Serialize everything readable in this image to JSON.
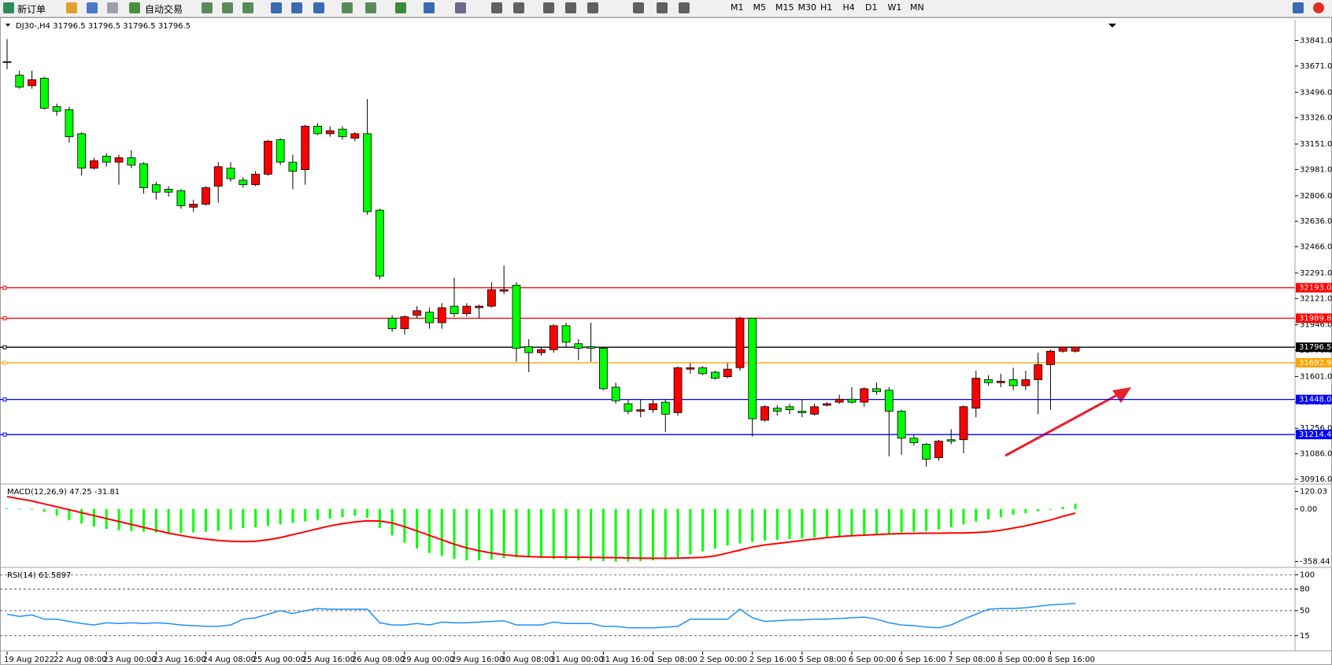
{
  "toolbar": {
    "buttons": [
      "新订单",
      "自动交易"
    ],
    "periods": [
      "M1",
      "M5",
      "M15",
      "M30",
      "H1",
      "H4",
      "D1",
      "W1",
      "MN"
    ]
  },
  "chart_data": [
    {
      "type": "candlestick",
      "title": "DJ30-,H4  31796.5 31796.5 31796.5 31796.5",
      "up_color": "#ff0000",
      "down_color": "#00ff00",
      "categories": [
        "19 Aug 2022",
        null,
        null,
        null,
        "22 Aug 08:00",
        null,
        null,
        null,
        "23 Aug 00:00",
        null,
        null,
        null,
        "23 Aug 16:00",
        null,
        null,
        null,
        "24 Aug 08:00",
        null,
        null,
        null,
        "25 Aug 00:00",
        null,
        null,
        null,
        "25 Aug 16:00",
        null,
        null,
        null,
        "26 Aug 08:00",
        null,
        null,
        null,
        "29 Aug 00:00",
        null,
        null,
        null,
        "29 Aug 16:00",
        null,
        null,
        null,
        "30 Aug 08:00",
        null,
        null,
        null,
        "31 Aug 00:00",
        null,
        null,
        null,
        "31 Aug 16:00",
        null,
        null,
        null,
        "1 Sep 08:00",
        null,
        null,
        null,
        "2 Sep 00:00",
        null,
        null,
        null,
        "2 Sep 16:00",
        null,
        null,
        null,
        "5 Sep 08:00",
        null,
        null,
        null,
        "6 Sep 00:00",
        null,
        null,
        null,
        "6 Sep 16:00",
        null,
        null,
        null,
        "7 Sep 08:00",
        null,
        null,
        null,
        "8 Sep 00:00",
        null,
        null,
        null,
        "8 Sep 16:00",
        null,
        null
      ],
      "open": [
        33700,
        33610,
        33540,
        33590,
        33400,
        33380,
        33220,
        32990,
        33070,
        33030,
        33060,
        33020,
        32880,
        32850,
        32840,
        32730,
        32750,
        32870,
        32990,
        32910,
        32880,
        32950,
        33180,
        33030,
        32980,
        33270,
        33220,
        33250,
        33190,
        33220,
        32710,
        31990,
        31920,
        32010,
        32030,
        31960,
        32070,
        32020,
        32060,
        32070,
        32170,
        32210,
        31800,
        31760,
        31780,
        31940,
        31820,
        31800,
        31790,
        31530,
        31420,
        31370,
        31380,
        31430,
        31360,
        31650,
        31660,
        31630,
        31600,
        31660,
        31990,
        31310,
        31390,
        31400,
        31370,
        31350,
        31410,
        31430,
        31450,
        31430,
        31520,
        31510,
        31370,
        31190,
        31150,
        31060,
        31180,
        31180,
        31390,
        31580,
        31560,
        31580,
        31540,
        31580,
        31680,
        31770,
        31770
      ],
      "high": [
        33850,
        33640,
        33640,
        33600,
        33420,
        33400,
        33230,
        33060,
        33090,
        33080,
        33110,
        33030,
        32900,
        32870,
        32850,
        32780,
        32870,
        33030,
        33030,
        32930,
        32970,
        33180,
        33190,
        33080,
        33280,
        33290,
        33270,
        33270,
        33230,
        33450,
        32720,
        32010,
        32010,
        32070,
        32060,
        32090,
        32260,
        32090,
        32080,
        32230,
        32340,
        32230,
        31850,
        31800,
        31950,
        31960,
        31850,
        31960,
        31800,
        31560,
        31450,
        31450,
        31450,
        31450,
        31670,
        31690,
        31670,
        31640,
        31690,
        32000,
        31990,
        31410,
        31410,
        31420,
        31450,
        31420,
        31430,
        31480,
        31530,
        31530,
        31560,
        31530,
        31380,
        31210,
        31160,
        31180,
        31250,
        31410,
        31640,
        31610,
        31620,
        31660,
        31640,
        31760,
        31780,
        31800,
        31800
      ],
      "low": [
        33650,
        33520,
        33520,
        33380,
        33340,
        33160,
        32940,
        32980,
        33000,
        32880,
        32990,
        32820,
        32780,
        32800,
        32720,
        32700,
        32740,
        32760,
        32900,
        32860,
        32870,
        32940,
        33010,
        32850,
        32880,
        33210,
        33200,
        33180,
        33170,
        32680,
        32250,
        31900,
        31880,
        31990,
        31920,
        31920,
        32000,
        32000,
        31990,
        32060,
        32150,
        31700,
        31630,
        31740,
        31760,
        31800,
        31710,
        31700,
        31510,
        31420,
        31350,
        31330,
        31360,
        31230,
        31340,
        31620,
        31610,
        31580,
        31590,
        31640,
        31200,
        31300,
        31340,
        31350,
        31330,
        31340,
        31400,
        31420,
        31420,
        31400,
        31480,
        31070,
        31080,
        31140,
        31000,
        31040,
        31150,
        31090,
        31330,
        31540,
        31530,
        31510,
        31510,
        31350,
        31380,
        31760,
        31760
      ],
      "close": [
        33700,
        33530,
        33580,
        33390,
        33370,
        33200,
        32990,
        33040,
        33030,
        33060,
        33010,
        32860,
        32830,
        32830,
        32740,
        32750,
        32860,
        33000,
        32920,
        32880,
        32950,
        33170,
        33030,
        32970,
        33270,
        33220,
        33240,
        33200,
        33220,
        32700,
        32270,
        31920,
        32000,
        32040,
        31960,
        32060,
        32020,
        32070,
        32070,
        32180,
        32180,
        31790,
        31760,
        31780,
        31940,
        31830,
        31790,
        31790,
        31520,
        31440,
        31370,
        31380,
        31420,
        31350,
        31660,
        31660,
        31620,
        31590,
        31650,
        31990,
        31320,
        31400,
        31370,
        31380,
        31360,
        31400,
        31420,
        31450,
        31430,
        31520,
        31500,
        31370,
        31190,
        31160,
        31050,
        31170,
        31170,
        31400,
        31590,
        31560,
        31570,
        31540,
        31580,
        31680,
        31770,
        31797,
        31797
      ],
      "ylim": [
        30890,
        33980
      ],
      "yticks": [
        {
          "value": 33841,
          "label": "33841.0"
        },
        {
          "value": 33671,
          "label": "33671.0"
        },
        {
          "value": 33496,
          "label": "33496.0"
        },
        {
          "value": 33326,
          "label": "33326.0"
        },
        {
          "value": 33151,
          "label": "33151.0"
        },
        {
          "value": 32981,
          "label": "32981.0"
        },
        {
          "value": 32806,
          "label": "32806.0"
        },
        {
          "value": 32636,
          "label": "32636.0"
        },
        {
          "value": 32466,
          "label": "32466.0"
        },
        {
          "value": 32291,
          "label": "32291.0"
        },
        {
          "value": 32121,
          "label": "32121.0"
        },
        {
          "value": 31946,
          "label": "31946.0"
        },
        {
          "value": 31776,
          "label": "31776.0"
        },
        {
          "value": 31601,
          "label": "31601.0"
        },
        {
          "value": 31431,
          "label": "31431.0"
        },
        {
          "value": 31256,
          "label": "31256.0"
        },
        {
          "value": 31086,
          "label": "31086.0"
        },
        {
          "value": 30916,
          "label": "30916.0"
        }
      ],
      "levels": [
        {
          "value": 32193,
          "label": "32193.0",
          "color": "#ff0000"
        },
        {
          "value": 31989.8,
          "label": "31989.8",
          "color": "#ff0000"
        },
        {
          "value": 31796.5,
          "label": "31796.5",
          "color": "#000000"
        },
        {
          "value": 31692.9,
          "label": "31692.9",
          "color": "#ffa500"
        },
        {
          "value": 31448,
          "label": "31448.0",
          "color": "#0000ff"
        },
        {
          "value": 31214.4,
          "label": "31214.4",
          "color": "#0000ff"
        }
      ]
    },
    {
      "type": "macd",
      "title": "MACD(12,26,9) 47.25 -31.81",
      "color": "#00ff00",
      "signal_color": "#ff0000",
      "values": [
        5,
        3,
        -5,
        -20,
        -45,
        -75,
        -100,
        -120,
        -135,
        -145,
        -150,
        -155,
        -160,
        -165,
        -165,
        -160,
        -155,
        -150,
        -140,
        -130,
        -125,
        -115,
        -105,
        -95,
        -85,
        -75,
        -65,
        -55,
        -45,
        -60,
        -130,
        -180,
        -230,
        -270,
        -300,
        -320,
        -340,
        -350,
        -350,
        -345,
        -335,
        -330,
        -330,
        -335,
        -340,
        -345,
        -350,
        -352,
        -355,
        -358,
        -358,
        -355,
        -350,
        -345,
        -330,
        -310,
        -290,
        -270,
        -250,
        -235,
        -225,
        -215,
        -210,
        -205,
        -200,
        -195,
        -190,
        -185,
        -180,
        -175,
        -170,
        -165,
        -160,
        -155,
        -150,
        -140,
        -125,
        -105,
        -85,
        -70,
        -55,
        -40,
        -28,
        -15,
        0,
        15,
        35
      ],
      "signal": [
        85,
        70,
        55,
        35,
        15,
        -5,
        -25,
        -45,
        -65,
        -85,
        -105,
        -125,
        -145,
        -165,
        -180,
        -195,
        -205,
        -215,
        -220,
        -222,
        -220,
        -210,
        -195,
        -175,
        -155,
        -135,
        -115,
        -100,
        -88,
        -80,
        -82,
        -95,
        -120,
        -150,
        -180,
        -210,
        -240,
        -265,
        -285,
        -300,
        -312,
        -320,
        -325,
        -327,
        -328,
        -328,
        -329,
        -330,
        -331,
        -332,
        -334,
        -335,
        -336,
        -336,
        -335,
        -333,
        -330,
        -320,
        -300,
        -280,
        -260,
        -245,
        -235,
        -225,
        -215,
        -205,
        -195,
        -188,
        -182,
        -178,
        -174,
        -170,
        -168,
        -166,
        -165,
        -165,
        -164,
        -163,
        -160,
        -155,
        -145,
        -130,
        -115,
        -95,
        -75,
        -50,
        -28
      ],
      "ylim": [
        -393,
        160
      ],
      "yticks": [
        120.03,
        {
          "value": 0,
          "label": "0.00"
        },
        -358.44
      ]
    },
    {
      "type": "line",
      "title": "RSI(14) 61.5897",
      "color": "#1e90ff",
      "values": [
        45,
        42,
        44,
        38,
        38,
        35,
        32,
        30,
        33,
        32,
        33,
        32,
        33,
        32,
        30,
        29,
        28,
        28,
        30,
        38,
        40,
        45,
        50,
        46,
        50,
        53,
        52,
        52,
        52,
        52,
        33,
        30,
        30,
        32,
        30,
        34,
        33,
        33,
        34,
        35,
        36,
        30,
        30,
        30,
        34,
        32,
        32,
        32,
        28,
        28,
        26,
        26,
        26,
        27,
        28,
        38,
        38,
        38,
        38,
        52,
        40,
        35,
        36,
        37,
        37,
        38,
        38,
        39,
        40,
        41,
        38,
        33,
        30,
        29,
        27,
        26,
        30,
        38,
        45,
        52,
        53,
        53,
        54,
        56,
        58,
        59,
        60
      ],
      "ylim": [
        -5,
        107
      ],
      "yticks": [
        100,
        80,
        50,
        15
      ]
    }
  ]
}
